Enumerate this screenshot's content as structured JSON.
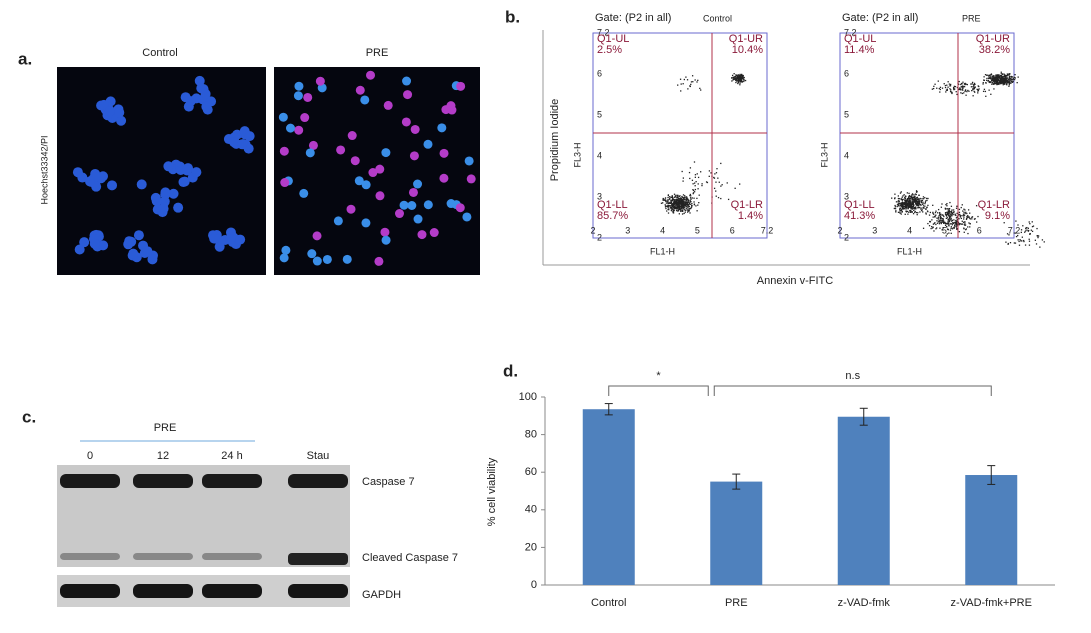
{
  "panel_a": {
    "label": "a.",
    "y_label": "Hoechst33342/PI",
    "images": [
      "Control",
      "PRE"
    ]
  },
  "panel_b": {
    "label": "b.",
    "y_label": "Propidium Iodide",
    "x_label": "Annexin v-FITC",
    "axis_ticks": [
      "2",
      "3",
      "4",
      "5",
      "6",
      "7.2"
    ],
    "plots": [
      {
        "gate": "Gate: (P2 in all)",
        "title": "Control",
        "x_axis": "FL1-H",
        "y_axis": "FL3-H",
        "quadrants": [
          [
            "Q1-UL",
            "2.5%"
          ],
          [
            "Q1-UR",
            "10.4%"
          ],
          [
            "Q1-LL",
            "85.7%"
          ],
          [
            "Q1-LR",
            "1.4%"
          ]
        ]
      },
      {
        "gate": "Gate: (P2 in all)",
        "title": "PRE",
        "x_axis": "FL1-H",
        "y_axis": "FL3-H",
        "quadrants": [
          [
            "Q1-UL",
            "11.4%"
          ],
          [
            "Q1-UR",
            "38.2%"
          ],
          [
            "Q1-LL",
            "41.3%"
          ],
          [
            "Q1-LR",
            "9.1%"
          ]
        ]
      }
    ]
  },
  "panel_c": {
    "label": "c.",
    "treatment": "PRE",
    "lanes": [
      "0",
      "12",
      "24 h",
      "Stau"
    ],
    "bands": [
      "Caspase 7",
      "Cleaved Caspase 7",
      "GAPDH"
    ]
  },
  "chart_data": {
    "type": "bar",
    "label": "d.",
    "y_label": "% cell viability",
    "categories": [
      "Control",
      "PRE",
      "z-VAD-fmk",
      "z-VAD-fmk+PRE"
    ],
    "values": [
      93.5,
      55,
      89.5,
      58.5
    ],
    "errors": [
      3,
      4,
      4.5,
      5
    ],
    "color": "#4f81bd",
    "ylim": [
      0,
      100
    ],
    "yticks": [
      0,
      20,
      40,
      60,
      80,
      100
    ],
    "annotations": [
      "*",
      "n.s"
    ]
  }
}
